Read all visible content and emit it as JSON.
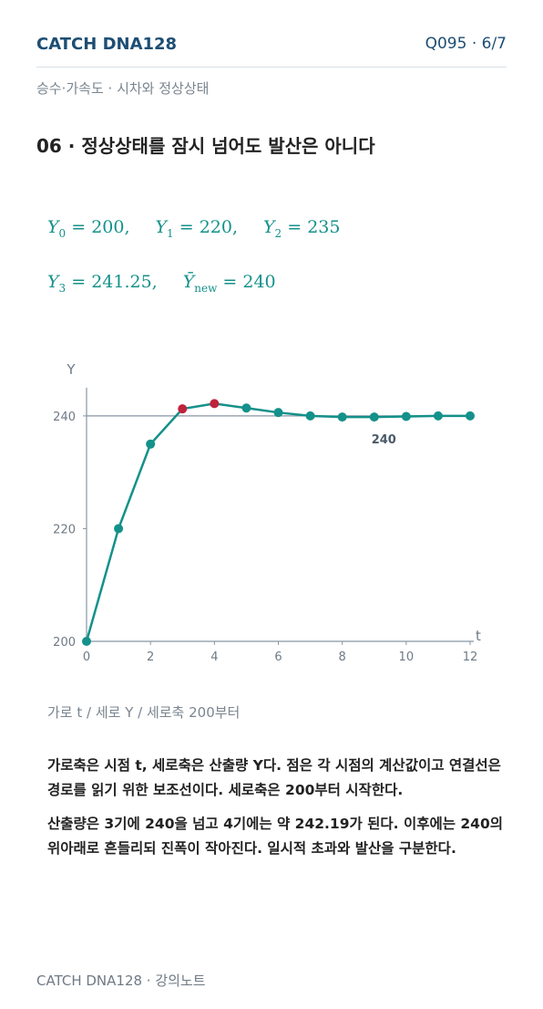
{
  "header": {
    "brand": "CATCH DNA128",
    "page": "Q095 · 6/7",
    "section": "승수·가속도 · 시차와 정상상태"
  },
  "heading": "06 · 정상상태를 잠시 넘어도 발산은 아니다",
  "equations": [
    [
      {
        "symbol": "Y",
        "sub": "0",
        "rest": "= 200,"
      },
      {
        "symbol": "Y",
        "sub": "1",
        "rest": "= 220,"
      },
      {
        "symbol": "Y",
        "sub": "2",
        "rest": "= 235"
      }
    ],
    [
      {
        "symbol": "Y",
        "sub": "3",
        "rest": "= 241.25,"
      },
      {
        "symbol": "Ȳ",
        "sub": "new",
        "rest": "= 240"
      }
    ]
  ],
  "chart_data": {
    "type": "line",
    "x_label": "t",
    "y_label": "Y",
    "x": [
      0,
      1,
      2,
      3,
      4,
      5,
      6,
      7,
      8,
      9,
      10,
      11,
      12
    ],
    "series": [
      {
        "color": "#14918a",
        "values": [
          200,
          220,
          235,
          241.25,
          242.19,
          241.4,
          240.6,
          240.0,
          239.8,
          239.8,
          239.9,
          240.0,
          240.0
        ]
      }
    ],
    "highlight": [
      3,
      4
    ],
    "highlight_color": "#c0223b",
    "reference_line": 240,
    "xlim": [
      0,
      12
    ],
    "xticks": [
      0,
      2,
      4,
      6,
      8,
      10,
      12
    ],
    "ylim": [
      200,
      245
    ],
    "yticks": [
      200,
      220,
      240
    ]
  },
  "caption": "가로 t / 세로 Y / 세로축 200부터",
  "paragraphs": [
    "가로축은 시점 t, 세로축은 산출량 Y다. 점은 각 시점의 계산값이고 연결선은 경로를 읽기 위한 보조선이다. 세로축은 200부터 시작한다.",
    "산출량은 3기에 240을 넘고 4기에는 약 242.19가 된다. 이후에는 240의 위아래로 흔들리되 진폭이 작아진다. 일시적 초과와 발산을 구분한다."
  ],
  "footer": "CATCH DNA128 · 강의노트"
}
